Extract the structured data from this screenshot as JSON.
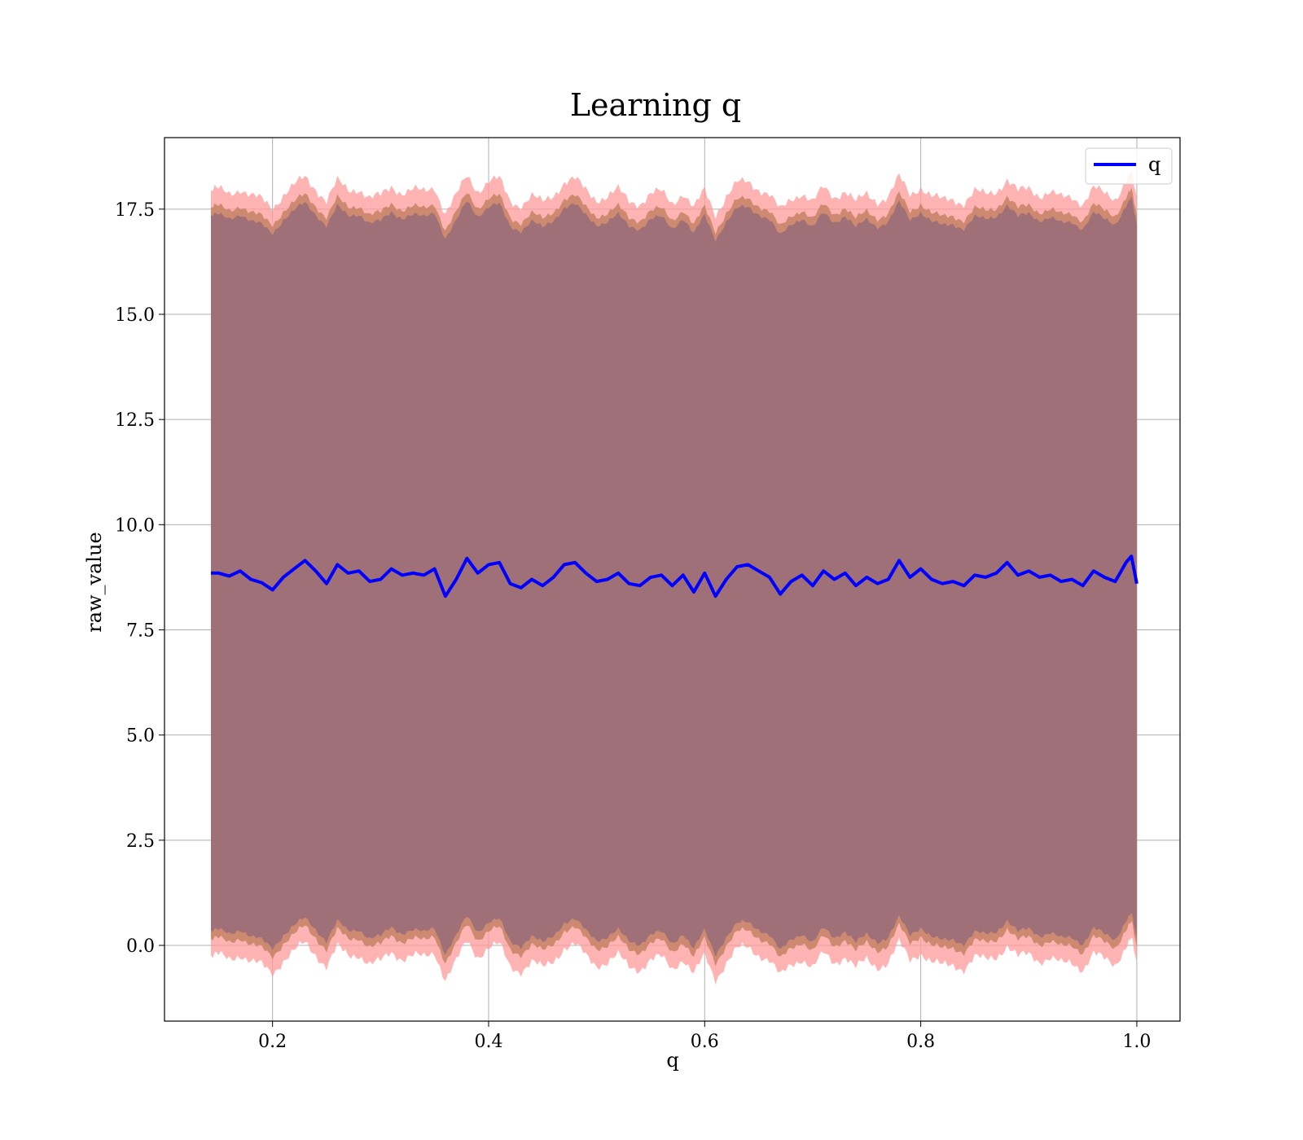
{
  "chart_data": {
    "type": "line",
    "title": "Learning q",
    "xlabel": "q",
    "ylabel": "raw_value",
    "xlim": [
      0.1,
      1.04
    ],
    "ylim": [
      -1.8,
      19.2
    ],
    "xticks": [
      0.2,
      0.4,
      0.6,
      0.8,
      1.0
    ],
    "xtick_labels": [
      "0.2",
      "0.4",
      "0.6",
      "0.8",
      "1.0"
    ],
    "yticks": [
      0.0,
      2.5,
      5.0,
      7.5,
      10.0,
      12.5,
      15.0,
      17.5
    ],
    "ytick_labels": [
      "0.0",
      "2.5",
      "5.0",
      "7.5",
      "10.0",
      "12.5",
      "15.0",
      "17.5"
    ],
    "grid": true,
    "legend": {
      "placement": "top-right",
      "entries": [
        "q"
      ]
    },
    "colors": {
      "line": "#0000ff",
      "band_outer": "#ff9999",
      "band_mid": "#c08060",
      "band_inner": "#a07078",
      "grid": "#b0b0b0"
    },
    "series": [
      {
        "name": "q",
        "x": [
          0.143,
          0.15,
          0.16,
          0.17,
          0.18,
          0.19,
          0.2,
          0.21,
          0.22,
          0.23,
          0.24,
          0.25,
          0.26,
          0.27,
          0.28,
          0.29,
          0.3,
          0.31,
          0.32,
          0.33,
          0.34,
          0.35,
          0.36,
          0.37,
          0.38,
          0.39,
          0.4,
          0.41,
          0.42,
          0.43,
          0.44,
          0.45,
          0.46,
          0.47,
          0.48,
          0.49,
          0.5,
          0.51,
          0.52,
          0.53,
          0.54,
          0.55,
          0.56,
          0.57,
          0.58,
          0.59,
          0.6,
          0.61,
          0.62,
          0.63,
          0.64,
          0.65,
          0.66,
          0.67,
          0.68,
          0.69,
          0.7,
          0.71,
          0.72,
          0.73,
          0.74,
          0.75,
          0.76,
          0.77,
          0.78,
          0.79,
          0.8,
          0.81,
          0.82,
          0.83,
          0.84,
          0.85,
          0.86,
          0.87,
          0.88,
          0.89,
          0.9,
          0.91,
          0.92,
          0.93,
          0.94,
          0.95,
          0.96,
          0.97,
          0.98,
          0.99,
          0.995,
          1.0
        ],
        "y": [
          8.85,
          8.85,
          8.78,
          8.9,
          8.7,
          8.62,
          8.45,
          8.75,
          8.95,
          9.15,
          8.9,
          8.6,
          9.05,
          8.85,
          8.9,
          8.65,
          8.7,
          8.95,
          8.8,
          8.85,
          8.8,
          8.95,
          8.3,
          8.7,
          9.2,
          8.85,
          9.05,
          9.1,
          8.6,
          8.5,
          8.7,
          8.55,
          8.75,
          9.05,
          9.1,
          8.85,
          8.65,
          8.7,
          8.85,
          8.6,
          8.55,
          8.75,
          8.8,
          8.55,
          8.8,
          8.4,
          8.85,
          8.3,
          8.7,
          9.0,
          9.05,
          8.9,
          8.75,
          8.35,
          8.65,
          8.8,
          8.55,
          8.9,
          8.7,
          8.85,
          8.55,
          8.75,
          8.6,
          8.7,
          9.15,
          8.75,
          8.95,
          8.7,
          8.6,
          8.65,
          8.55,
          8.8,
          8.75,
          8.85,
          9.1,
          8.8,
          8.9,
          8.75,
          8.8,
          8.65,
          8.7,
          8.55,
          8.9,
          8.75,
          8.65,
          9.1,
          9.25,
          8.6
        ],
        "band_outer": {
          "offset": 9.1
        },
        "band_mid": {
          "offset": 8.7
        },
        "band_inner": {
          "offset": 8.5
        }
      }
    ]
  }
}
